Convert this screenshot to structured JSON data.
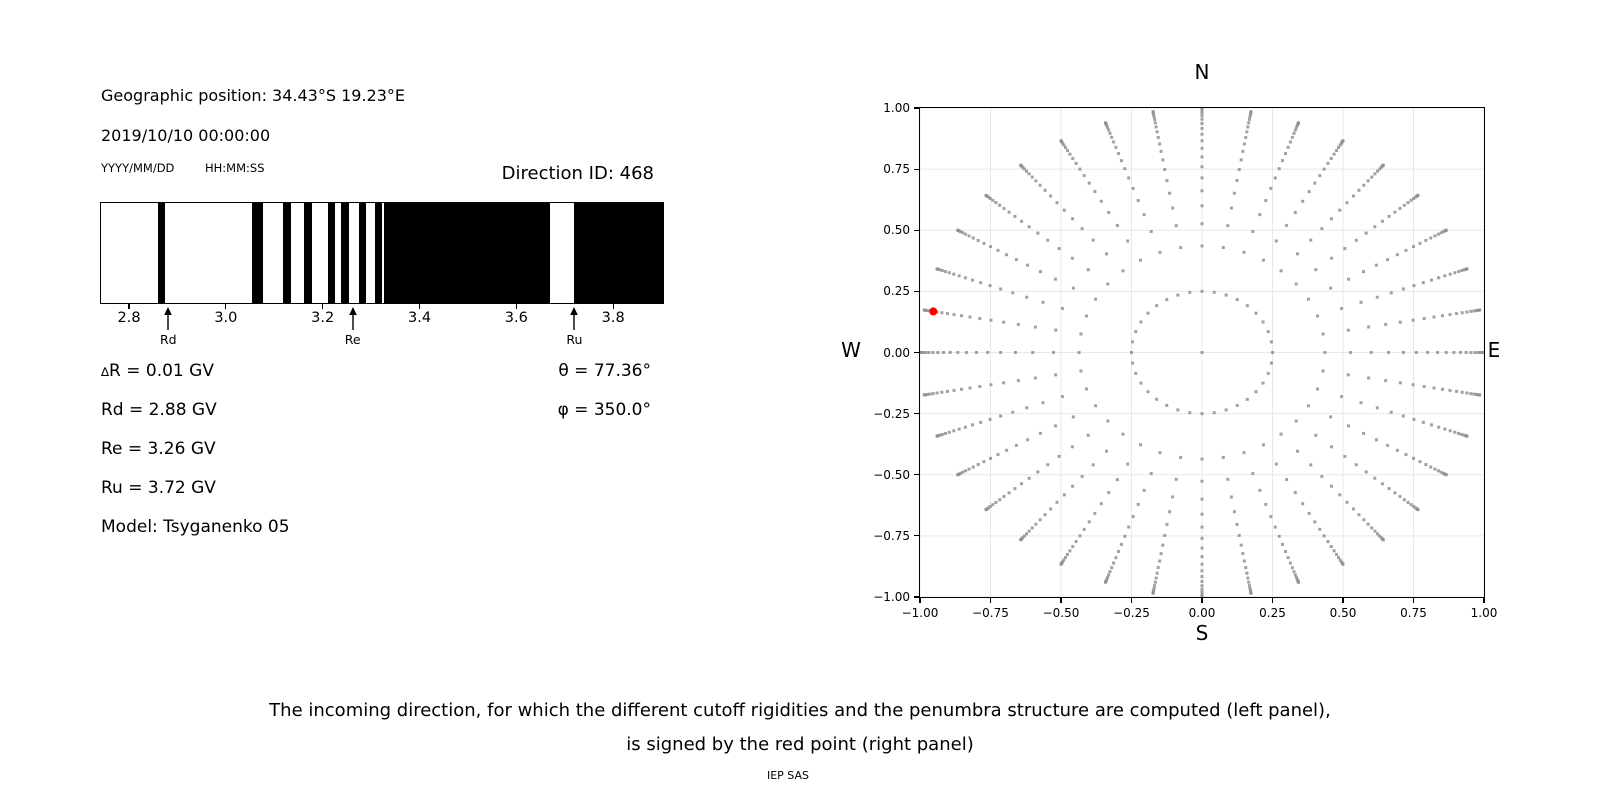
{
  "header": {
    "geo": "Geographic position: 34.43°S 19.23°E",
    "datetime": "2019/10/10 00:00:00",
    "date_hint": "YYYY/MM/DD",
    "time_hint": "HH:MM:SS",
    "direction_id": "Direction ID: 468"
  },
  "info": {
    "delta_sym": "∆",
    "delta_text": "R = 0.01 GV",
    "rd": "Rd = 2.88 GV",
    "re": "Re = 3.26 GV",
    "ru": "Ru = 3.72 GV",
    "model": "Model: Tsyganenko 05",
    "theta": "θ = 77.36°",
    "phi": "φ = 350.0°"
  },
  "chart_data": [
    {
      "type": "bar",
      "title": "penumbra structure (black = forbidden/allowed bands vs rigidity, GV)",
      "xlim": [
        2.74,
        3.905
      ],
      "xticks": [
        {
          "v": 2.8,
          "label": "2.8"
        },
        {
          "v": 3.0,
          "label": "3.0"
        },
        {
          "v": 3.2,
          "label": "3.2"
        },
        {
          "v": 3.4,
          "label": "3.4"
        },
        {
          "v": 3.6,
          "label": "3.6"
        },
        {
          "v": 3.8,
          "label": "3.8"
        }
      ],
      "bar_color": "#000000",
      "bars_gv": [
        [
          2.861,
          2.876
        ],
        [
          3.056,
          3.078
        ],
        [
          3.119,
          3.136
        ],
        [
          3.163,
          3.178
        ],
        [
          3.213,
          3.227
        ],
        [
          3.238,
          3.255
        ],
        [
          3.276,
          3.29
        ],
        [
          3.31,
          3.323
        ],
        [
          3.327,
          3.671
        ],
        [
          3.72,
          3.905
        ]
      ],
      "arrows": [
        {
          "label": "Rd",
          "x": 2.881
        },
        {
          "label": "Re",
          "x": 3.262
        },
        {
          "label": "Ru",
          "x": 3.72
        }
      ]
    },
    {
      "type": "scatter",
      "title": "grid of incoming directions, selected direction in red",
      "xlim": [
        -1,
        1
      ],
      "ylim": [
        -1,
        1
      ],
      "grid": true,
      "grid_color": "#e8e8e8",
      "dot_color": "#909090",
      "xticks": [
        {
          "v": -1.0,
          "label": "−1.00"
        },
        {
          "v": -0.75,
          "label": "−0.75"
        },
        {
          "v": -0.5,
          "label": "−0.50"
        },
        {
          "v": -0.25,
          "label": "−0.25"
        },
        {
          "v": 0.0,
          "label": "0.00"
        },
        {
          "v": 0.25,
          "label": "0.25"
        },
        {
          "v": 0.5,
          "label": "0.50"
        },
        {
          "v": 0.75,
          "label": "0.75"
        },
        {
          "v": 1.0,
          "label": "1.00"
        }
      ],
      "yticks": [
        {
          "v": 1.0,
          "label": "1.00"
        },
        {
          "v": 0.75,
          "label": "0.75"
        },
        {
          "v": 0.5,
          "label": "0.50"
        },
        {
          "v": 0.25,
          "label": "0.25"
        },
        {
          "v": 0.0,
          "label": "0.00"
        },
        {
          "v": -0.25,
          "label": "−0.25"
        },
        {
          "v": -0.5,
          "label": "−0.50"
        },
        {
          "v": -0.75,
          "label": "−0.75"
        },
        {
          "v": -1.0,
          "label": "−1.00"
        }
      ],
      "compass": {
        "n": "N",
        "s": "S",
        "e": "E",
        "w": "W"
      },
      "center_dot": true,
      "ring_radius": 0.25,
      "azimuths_deg_step": 10,
      "spoke_radii": [
        0.4359,
        0.5268,
        0.6,
        0.6614,
        0.7141,
        0.7599,
        0.8,
        0.8352,
        0.866,
        0.893,
        0.9165,
        0.9367,
        0.9539,
        0.9682,
        0.9798,
        0.9887,
        0.995,
        0.9987,
        1.0
      ],
      "red_point": {
        "azimuth_deg": 280,
        "r": 0.968,
        "x": -0.953,
        "y": 0.168,
        "color": "#ff0000"
      }
    }
  ],
  "caption": {
    "line1": "The incoming direction, for which the different cutoff rigidities and the penumbra structure are computed (left panel),",
    "line2": "is signed by the red point (right panel)",
    "credit": "IEP SAS"
  }
}
